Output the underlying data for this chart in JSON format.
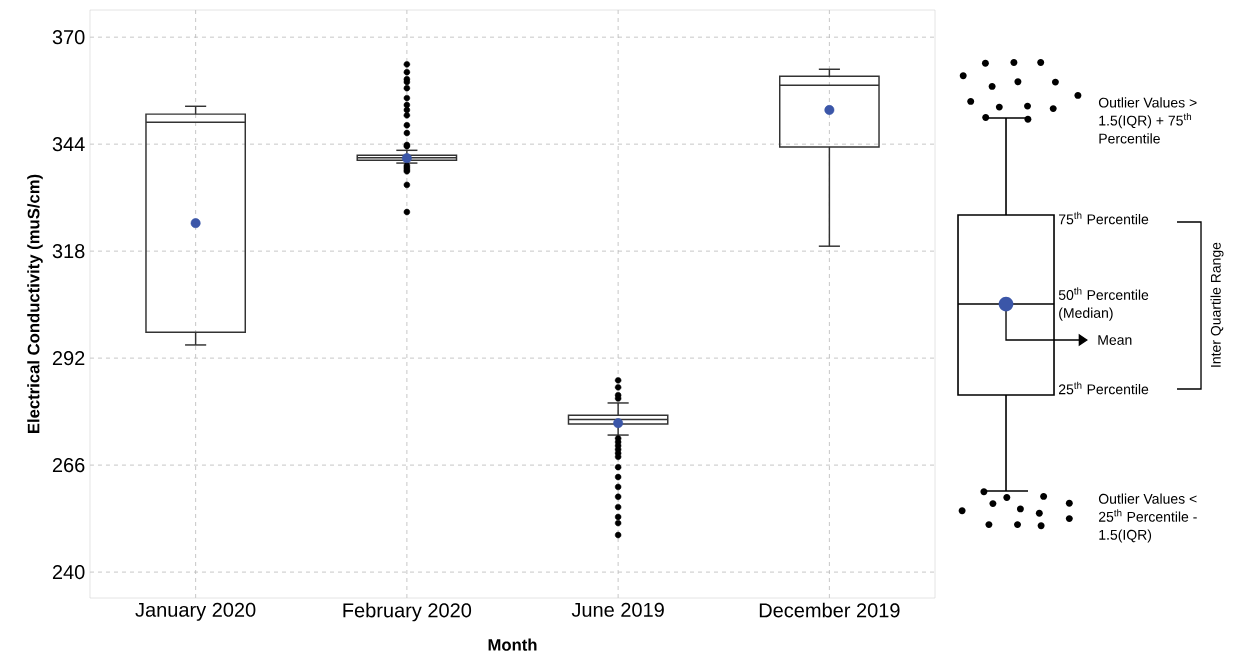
{
  "chart_data": {
    "type": "box",
    "xlabel": "Month",
    "ylabel": "Electrical Conductivity (muS/cm)",
    "categories": [
      "January 2020",
      "February 2020",
      "June 2019",
      "December 2019"
    ],
    "boxes": [
      {
        "low": 295.2,
        "q1": 298.3,
        "median": 349.3,
        "q3": 351.3,
        "high": 353.2,
        "mean": 324.8
      },
      {
        "low": 339.4,
        "q1": 340.1,
        "median": 340.7,
        "q3": 341.3,
        "high": 342.5,
        "mean": 340.6,
        "outliers": [
          363.4,
          361.5,
          359.8,
          359.1,
          357.6,
          355.2,
          353.5,
          352.3,
          351.0,
          348.6,
          346.7,
          343.8,
          343.5,
          338.8,
          338.3,
          337.8,
          337.4,
          334.1,
          327.5
        ]
      },
      {
        "low": 273.3,
        "q1": 276.0,
        "median": 277.1,
        "q3": 278.1,
        "high": 281.1,
        "mean": 276.2,
        "outliers": [
          286.6,
          284.9,
          283.0,
          282.2,
          272.5,
          271.6,
          270.7,
          269.8,
          268.9,
          268.0,
          265.5,
          263.1,
          260.7,
          258.3,
          255.8,
          253.4,
          251.9,
          249.0
        ]
      },
      {
        "low": 319.2,
        "q1": 343.3,
        "median": 358.3,
        "q3": 360.5,
        "high": 362.2,
        "mean": 352.3
      }
    ],
    "ylim": [
      233.7,
      376.6
    ],
    "yticks": [
      240,
      266,
      292,
      318,
      344,
      370
    ],
    "grid": true,
    "annotations": [
      "Outlier Values  > 1.5(IQR) + 75$^{th}$ Percentile",
      "75$^{th}$ Percentile",
      "50$^{th}$ Percentile (Median)",
      "Mean",
      "25$^{th}$ Percentile",
      "Inter Quartile Range",
      "Outlier Values  < 25$^{th}$ Percentile - 1.5(IQR)"
    ]
  }
}
